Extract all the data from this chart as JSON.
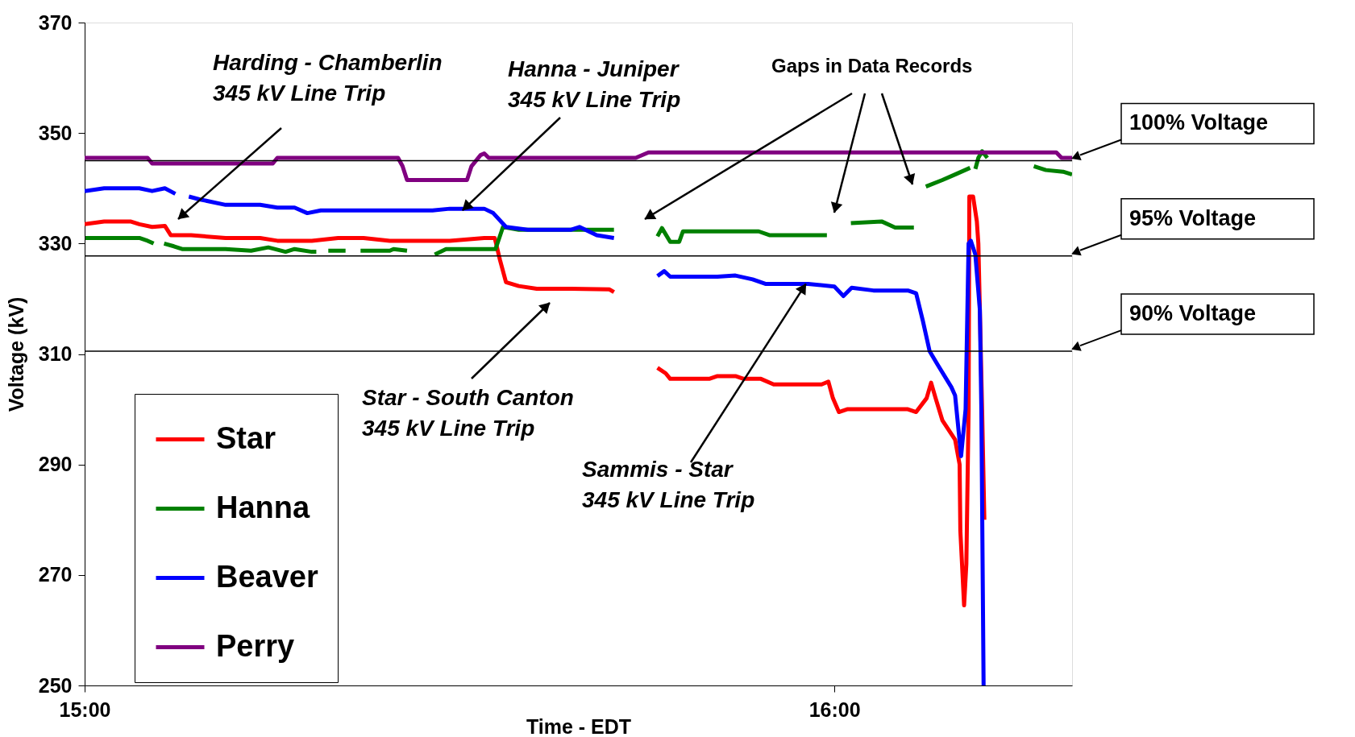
{
  "chart_data": {
    "type": "line",
    "xlabel": "Time - EDT",
    "ylabel": "Voltage (kV)",
    "xlim": [
      15,
      16.317
    ],
    "xticks": [
      {
        "value": 15,
        "label": "15:00"
      },
      {
        "value": 16,
        "label": "16:00"
      }
    ],
    "ylim": [
      250,
      370
    ],
    "yticks": [
      250,
      270,
      290,
      310,
      330,
      350,
      370
    ],
    "grid": false,
    "legend": "bottom left",
    "marker": "none",
    "line_style": "solid",
    "series": [
      {
        "name": "Star",
        "color": "#ff0000",
        "x": [
          15.0,
          15.026,
          15.061,
          15.073,
          15.09,
          15.107,
          15.115,
          15.142,
          15.188,
          15.234,
          15.257,
          15.303,
          15.338,
          15.372,
          15.407,
          15.487,
          15.533,
          15.547,
          15.554,
          15.562,
          15.579,
          15.603,
          15.649,
          15.7,
          15.706,
          15.735,
          15.764,
          15.775,
          15.781,
          15.833,
          15.844,
          15.868,
          15.879,
          15.902,
          15.919,
          15.983,
          15.992,
          15.998,
          16.006,
          16.017,
          16.098,
          16.109,
          16.123,
          16.129,
          16.135,
          16.144,
          16.161,
          16.167,
          16.168,
          16.173,
          16.176,
          16.179,
          16.18,
          16.185,
          16.19,
          16.192,
          16.197,
          16.2
        ],
        "values": [
          333.5,
          334,
          334,
          333.5,
          333,
          333.2,
          331.5,
          331.5,
          331,
          331,
          330.5,
          330.5,
          331,
          331,
          330.5,
          330.5,
          331,
          331,
          327,
          323,
          322.3,
          321.8,
          321.8,
          321.7,
          321.2,
          null,
          307.5,
          306.5,
          305.5,
          305.5,
          306,
          306,
          305.5,
          305.5,
          304.5,
          304.5,
          305,
          302,
          299.5,
          300,
          300,
          299.5,
          302,
          304.8,
          302,
          298,
          294.5,
          290,
          278,
          264.5,
          272,
          300,
          338.5,
          338.5,
          334,
          330,
          300,
          280
        ]
      },
      {
        "name": "Hanna",
        "color": "#008000",
        "x": [
          15.001,
          15.073,
          15.084,
          15.092,
          15.099,
          15.106,
          15.119,
          15.13,
          15.188,
          15.222,
          15.245,
          15.268,
          15.28,
          15.303,
          15.309,
          15.317,
          15.325,
          15.348,
          15.358,
          15.368,
          15.407,
          15.412,
          15.43,
          15.448,
          15.467,
          15.482,
          15.548,
          15.558,
          15.579,
          15.649,
          15.706,
          15.735,
          15.764,
          15.77,
          15.781,
          15.793,
          15.798,
          15.899,
          15.914,
          15.99,
          16.006,
          16.022,
          16.063,
          16.081,
          16.106,
          16.114,
          16.122,
          16.144,
          16.161,
          16.181,
          16.185,
          16.188,
          16.192,
          16.197,
          16.204,
          16.207,
          16.266,
          16.282,
          16.305,
          16.317
        ],
        "values": [
          331,
          331,
          330.5,
          330,
          null,
          330,
          329.5,
          329,
          329,
          328.7,
          329.3,
          328.5,
          329,
          328.5,
          328.5,
          null,
          328.7,
          328.7,
          null,
          328.7,
          328.7,
          329,
          328.7,
          null,
          328,
          329,
          329,
          333,
          332.5,
          332.5,
          332.5,
          null,
          331.3,
          332.8,
          330.3,
          330.3,
          332.2,
          332.2,
          331.5,
          331.5,
          null,
          333.7,
          334,
          332.9,
          332.9,
          null,
          340.3,
          341.5,
          342.5,
          343.7,
          null,
          343.5,
          345.5,
          346.7,
          345.5,
          null,
          344,
          343.3,
          343,
          342.5
        ]
      },
      {
        "name": "Beaver",
        "color": "#0000ff",
        "x": [
          15.0,
          15.026,
          15.073,
          15.09,
          15.107,
          15.121,
          15.13,
          15.139,
          15.153,
          15.188,
          15.234,
          15.257,
          15.28,
          15.297,
          15.315,
          15.464,
          15.487,
          15.533,
          15.545,
          15.562,
          15.591,
          15.649,
          15.66,
          15.683,
          15.706,
          15.735,
          15.764,
          15.773,
          15.781,
          15.844,
          15.868,
          15.891,
          15.908,
          15.965,
          16.0,
          16.012,
          16.023,
          16.052,
          16.098,
          16.109,
          16.118,
          16.127,
          16.138,
          16.156,
          16.161,
          16.169,
          16.175,
          16.179,
          16.182,
          16.188,
          16.194,
          16.196,
          16.199
        ],
        "values": [
          339.5,
          340,
          340,
          339.5,
          340,
          339,
          null,
          338.5,
          338,
          337,
          337,
          336.5,
          336.5,
          335.5,
          336,
          336,
          336.3,
          336.3,
          335.5,
          333,
          332.5,
          332.5,
          333,
          331.5,
          331,
          null,
          324.1,
          325,
          324,
          324,
          324.2,
          323.5,
          322.7,
          322.7,
          322.2,
          320.5,
          322,
          321.5,
          321.5,
          321,
          316,
          310.5,
          308,
          304,
          302.5,
          291.5,
          300,
          330,
          330.5,
          328,
          318,
          300,
          250
        ]
      },
      {
        "name": "Perry",
        "color": "#800080",
        "x": [
          15.0,
          15.084,
          15.09,
          15.251,
          15.257,
          15.418,
          15.424,
          15.43,
          15.51,
          15.516,
          15.528,
          15.533,
          15.539,
          15.735,
          15.752,
          16.296,
          16.303,
          16.317
        ],
        "values": [
          345.5,
          345.5,
          344.5,
          344.5,
          345.5,
          345.5,
          344,
          341.5,
          341.5,
          344,
          346,
          346.3,
          345.5,
          345.5,
          346.5,
          346.5,
          345.5,
          345.5
        ]
      }
    ],
    "ref_lines": [
      {
        "axis": "y",
        "value": 345,
        "label": "100% Voltage",
        "color": "#000000"
      },
      {
        "axis": "y",
        "value": 327.75,
        "label": "95% Voltage",
        "color": "#000000"
      },
      {
        "axis": "y",
        "value": 310.5,
        "label": "90% Voltage",
        "color": "#000000"
      }
    ],
    "annotations": [
      "Harding - Chamberlin\n345 kV Line Trip",
      {
        "text": "Hanna - Juniper\n345 kV Line Trip",
        "x": 15.504,
        "y": 336
      },
      "Star - South Canton\n345 kV Line Trip",
      {
        "text": "Sammis - Star\n345 kV Line Trip",
        "x": 15.962,
        "y": 322.7
      },
      "Gaps in Data Records"
    ]
  }
}
